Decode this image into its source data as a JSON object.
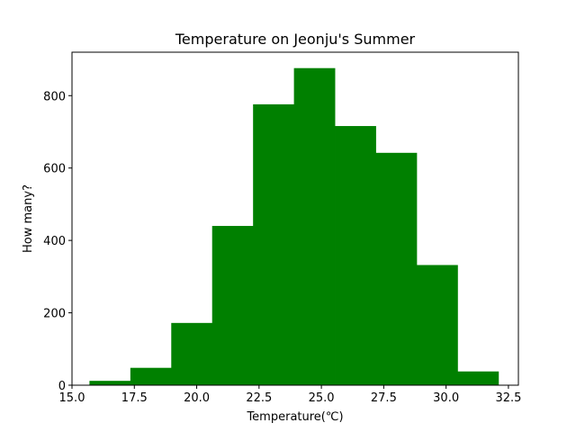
{
  "chart_data": {
    "type": "bar",
    "title": "Temperature on Jeonju's Summer",
    "xlabel": "Temperature(℃)",
    "ylabel": "How many?",
    "bin_edges": [
      15.7,
      17.34,
      18.98,
      20.62,
      22.26,
      23.9,
      25.54,
      27.18,
      28.82,
      30.46,
      32.1
    ],
    "values": [
      12,
      48,
      172,
      440,
      776,
      876,
      716,
      642,
      332,
      38
    ],
    "xlim": [
      15.0,
      32.9
    ],
    "ylim": [
      0,
      920
    ],
    "xticks": [
      15.0,
      17.5,
      20.0,
      22.5,
      25.0,
      27.5,
      30.0,
      32.5
    ],
    "xtick_labels": [
      "15.0",
      "17.5",
      "20.0",
      "22.5",
      "25.0",
      "27.5",
      "30.0",
      "32.5"
    ],
    "yticks": [
      0,
      200,
      400,
      600,
      800
    ],
    "ytick_labels": [
      "0",
      "200",
      "400",
      "600",
      "800"
    ],
    "bar_color": "#008000",
    "grid": false,
    "legend": "none"
  }
}
